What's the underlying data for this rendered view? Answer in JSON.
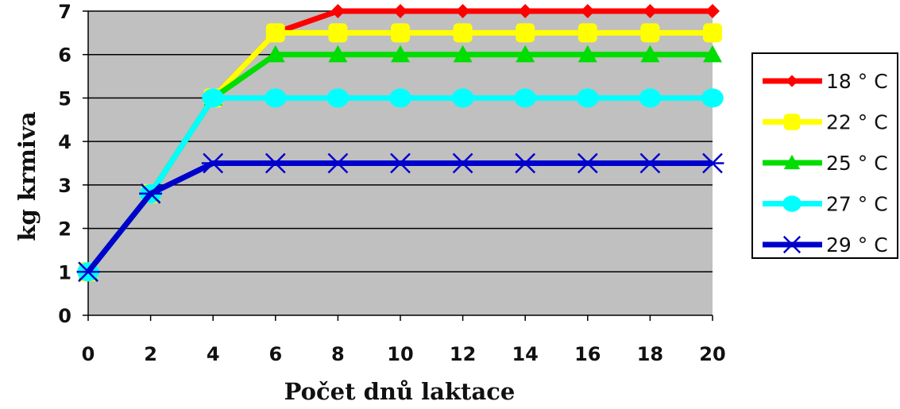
{
  "chart_data": {
    "type": "line",
    "title": "",
    "xlabel": "Počet dnů laktace",
    "ylabel": "kg krmiva",
    "x": [
      0,
      2,
      4,
      6,
      8,
      10,
      12,
      14,
      16,
      18,
      20
    ],
    "xlim": [
      0,
      20
    ],
    "ylim": [
      0,
      7
    ],
    "yticks": [
      0,
      1,
      2,
      3,
      4,
      5,
      6,
      7
    ],
    "grid": "horizontal",
    "plot_background": "#c0c0c0",
    "legend_position": "right",
    "series": [
      {
        "name": "18 ° C",
        "color": "#ff0000",
        "marker": "diamond",
        "values": [
          1,
          2.8,
          5,
          6.5,
          7,
          7,
          7,
          7,
          7,
          7,
          7
        ]
      },
      {
        "name": "22 ° C",
        "color": "#ffff00",
        "marker": "square",
        "values": [
          1,
          2.8,
          5,
          6.5,
          6.5,
          6.5,
          6.5,
          6.5,
          6.5,
          6.5,
          6.5
        ]
      },
      {
        "name": "25 ° C",
        "color": "#00dd00",
        "marker": "triangle",
        "values": [
          1,
          2.8,
          5,
          6,
          6,
          6,
          6,
          6,
          6,
          6,
          6
        ]
      },
      {
        "name": "27 ° C",
        "color": "#00ffff",
        "marker": "circle",
        "values": [
          1,
          2.8,
          5,
          5,
          5,
          5,
          5,
          5,
          5,
          5,
          5
        ]
      },
      {
        "name": "29 ° C",
        "color": "#0000cc",
        "marker": "asterisk",
        "values": [
          1,
          2.8,
          3.5,
          3.5,
          3.5,
          3.5,
          3.5,
          3.5,
          3.5,
          3.5,
          3.5
        ]
      }
    ]
  }
}
